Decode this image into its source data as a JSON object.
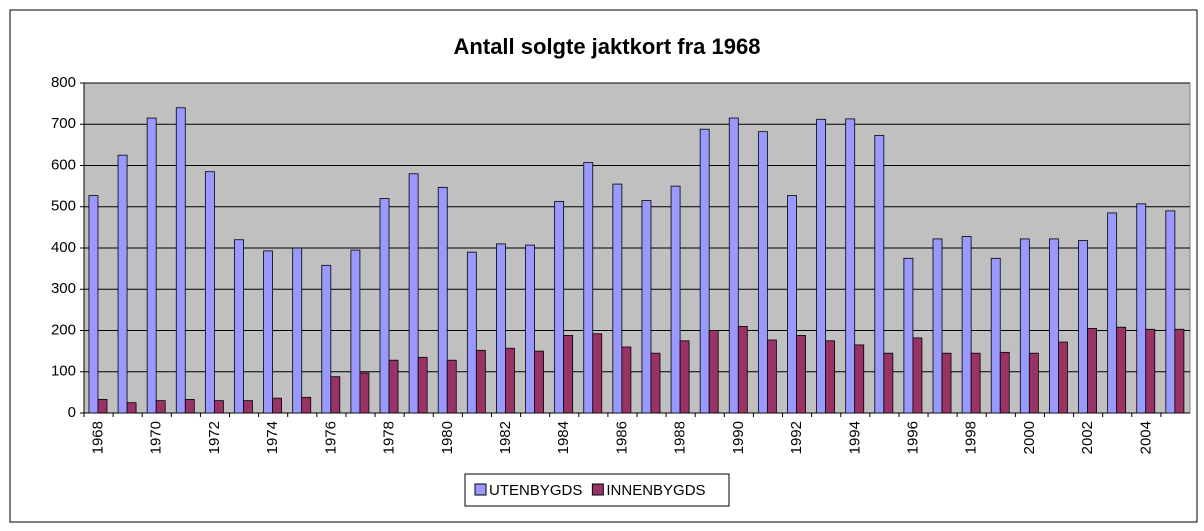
{
  "chart_data": {
    "type": "bar",
    "title": "Antall solgte jaktkort fra 1968",
    "categories": [
      "1968",
      null,
      "1970",
      null,
      "1972",
      null,
      "1974",
      null,
      "1976",
      null,
      "1978",
      null,
      "1980",
      null,
      "1982",
      null,
      "1984",
      null,
      "1986",
      null,
      "1988",
      null,
      "1990",
      null,
      "1992",
      null,
      "1994",
      null,
      "1996",
      null,
      "1998",
      null,
      "2000",
      null,
      "2002",
      null,
      "2004",
      null
    ],
    "series": [
      {
        "name": "UTENBYGDS",
        "color": "#9999ff",
        "values": [
          527,
          625,
          715,
          740,
          585,
          420,
          393,
          400,
          358,
          395,
          520,
          580,
          547,
          390,
          410,
          407,
          513,
          607,
          555,
          515,
          550,
          688,
          715,
          682,
          527,
          712,
          713,
          673,
          375,
          422,
          428,
          375,
          422,
          422,
          418,
          485,
          507,
          490
        ]
      },
      {
        "name": "INNENBYGDS",
        "color": "#993366",
        "values": [
          33,
          25,
          30,
          33,
          30,
          30,
          36,
          38,
          88,
          97,
          128,
          135,
          128,
          152,
          157,
          150,
          188,
          192,
          160,
          145,
          175,
          200,
          210,
          177,
          188,
          175,
          165,
          145,
          182,
          145,
          145,
          147,
          145,
          172,
          205,
          208,
          203,
          203
        ]
      }
    ],
    "ylim": [
      0,
      800
    ],
    "yticks": [
      0,
      100,
      200,
      300,
      400,
      500,
      600,
      700,
      800
    ],
    "grid": true,
    "legend": "bottom"
  }
}
